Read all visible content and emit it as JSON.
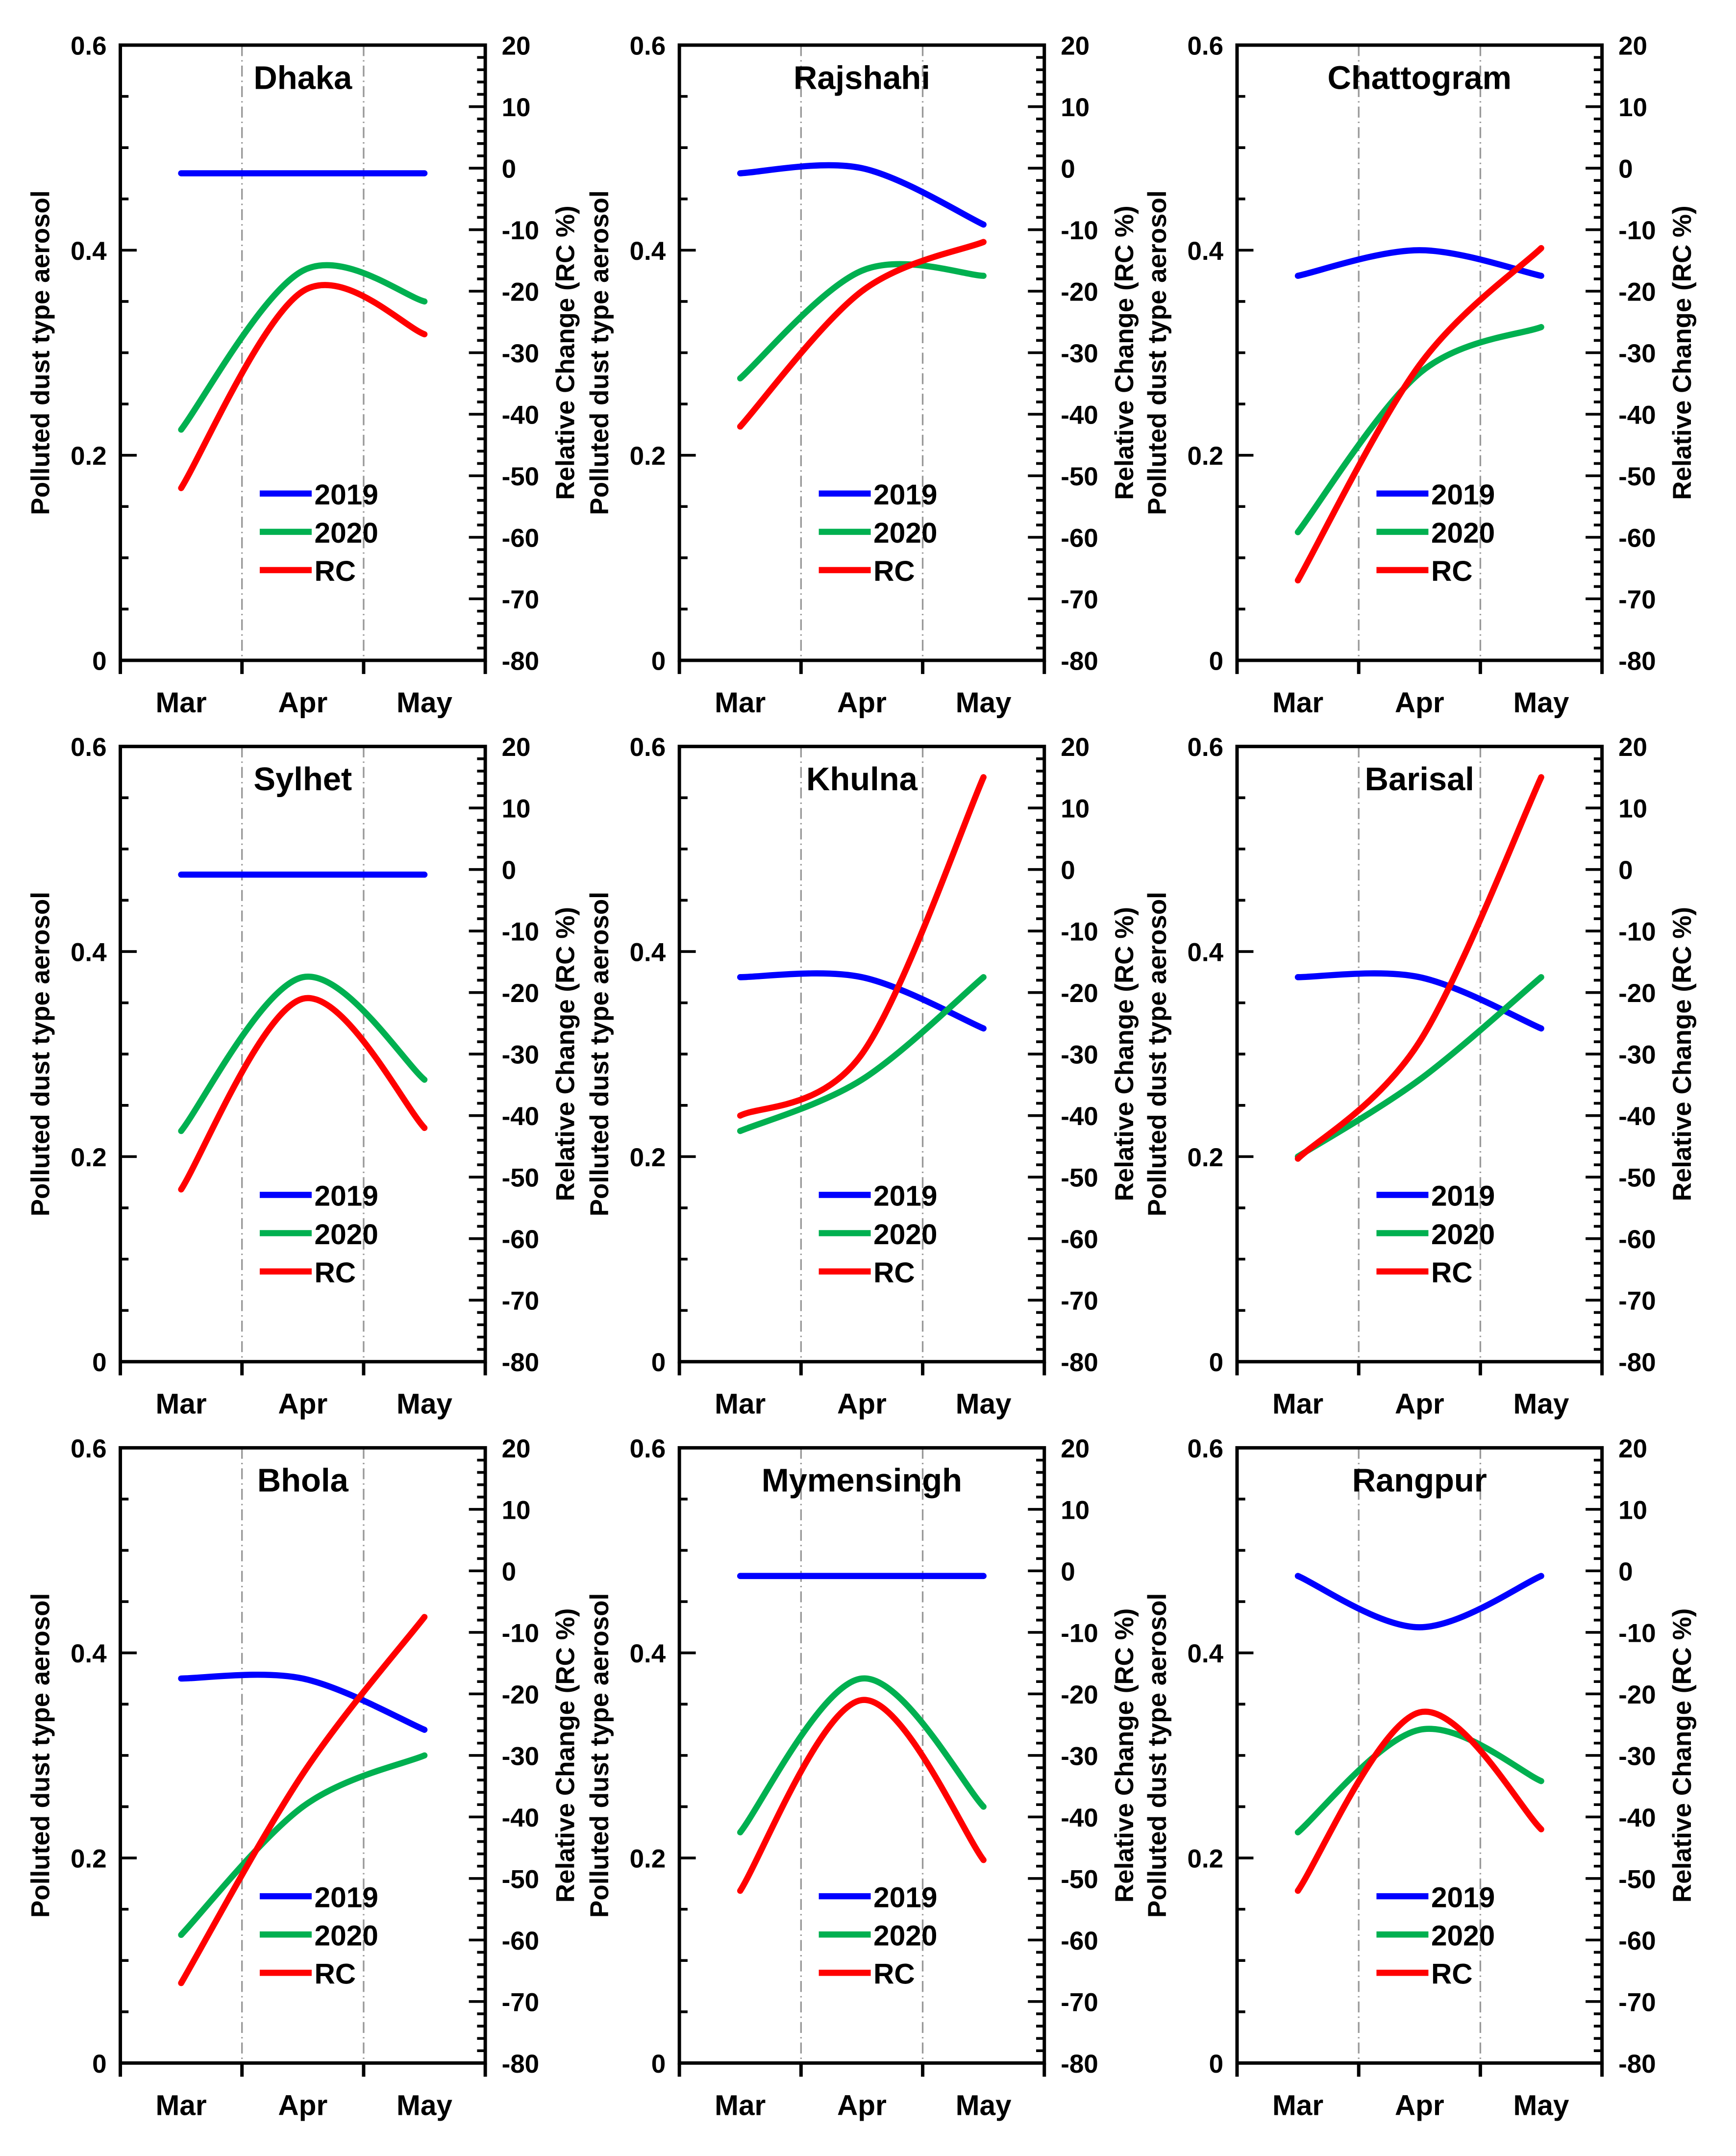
{
  "chart_data": {
    "type": "line",
    "layout": "3x3 grid of dual-axis line charts",
    "categories": [
      "Mar",
      "Apr",
      "May"
    ],
    "ylabel_left": "Polluted dust type aerosol",
    "ylabel_right": "Relative Change (RC %)",
    "ylim_left": [
      0,
      0.6
    ],
    "yticks_left": [
      "0",
      "0.2",
      "0.4",
      "0.6"
    ],
    "ylim_right": [
      -80,
      20
    ],
    "yticks_right": [
      "-80",
      "-70",
      "-60",
      "-50",
      "-40",
      "-30",
      "-20",
      "-10",
      "0",
      "10",
      "20"
    ],
    "legend": [
      "2019",
      "2020",
      "RC"
    ],
    "colors": {
      "2019": "#0000ff",
      "2020": "#00b050",
      "RC": "#ff0000"
    },
    "panels": [
      {
        "title": "Dhaka",
        "series": {
          "2019": [
            0.475,
            0.475,
            0.475
          ],
          "2020": [
            0.225,
            0.38,
            0.35
          ],
          "RC": [
            -52,
            -20,
            -27
          ]
        }
      },
      {
        "title": "Rajshahi",
        "series": {
          "2019": [
            0.475,
            0.48,
            0.425
          ],
          "2020": [
            0.275,
            0.38,
            0.375
          ],
          "RC": [
            -42,
            -20,
            -12
          ]
        }
      },
      {
        "title": "Chattogram",
        "series": {
          "2019": [
            0.375,
            0.4,
            0.375
          ],
          "2020": [
            0.125,
            0.28,
            0.325
          ],
          "RC": [
            -67,
            -32,
            -13
          ]
        }
      },
      {
        "title": "Sylhet",
        "series": {
          "2019": [
            0.475,
            0.475,
            0.475
          ],
          "2020": [
            0.225,
            0.375,
            0.275
          ],
          "RC": [
            -52,
            -21,
            -42
          ]
        }
      },
      {
        "title": "Khulna",
        "series": {
          "2019": [
            0.375,
            0.375,
            0.325
          ],
          "2020": [
            0.225,
            0.275,
            0.375
          ],
          "RC": [
            -40,
            -30,
            15
          ]
        }
      },
      {
        "title": "Barisal",
        "series": {
          "2019": [
            0.375,
            0.375,
            0.325
          ],
          "2020": [
            0.2,
            0.275,
            0.375
          ],
          "RC": [
            -47,
            -28,
            15
          ]
        }
      },
      {
        "title": "Bhola",
        "series": {
          "2019": [
            0.375,
            0.375,
            0.325
          ],
          "2020": [
            0.125,
            0.25,
            0.3
          ],
          "RC": [
            -67,
            -33,
            -7.5
          ]
        }
      },
      {
        "title": "Mymensingh",
        "series": {
          "2019": [
            0.475,
            0.475,
            0.475
          ],
          "2020": [
            0.225,
            0.375,
            0.25
          ],
          "RC": [
            -52,
            -21,
            -47
          ]
        }
      },
      {
        "title": "Rangpur",
        "series": {
          "2019": [
            0.475,
            0.425,
            0.475
          ],
          "2020": [
            0.225,
            0.325,
            0.275
          ],
          "RC": [
            -52,
            -23,
            -42
          ]
        }
      }
    ]
  }
}
